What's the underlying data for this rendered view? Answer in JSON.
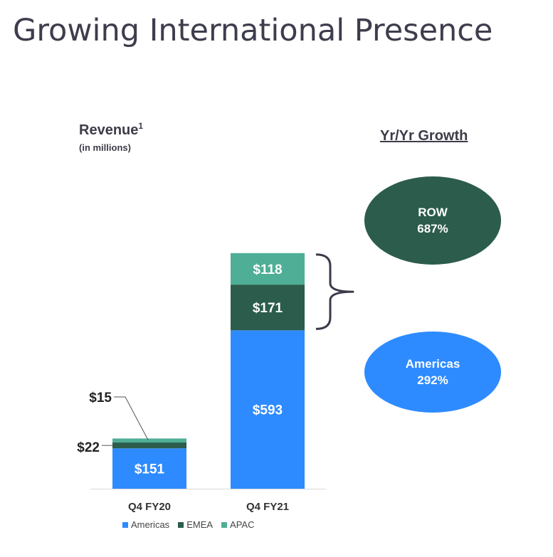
{
  "title": "Growing International Presence",
  "revenue_label": "Revenue",
  "revenue_footnote": "1",
  "revenue_sub": "(in millions)",
  "growth_heading": "Yr/Yr Growth",
  "growth": [
    {
      "label": "ROW",
      "value": "687%",
      "color": "#2b5c4c"
    },
    {
      "label": "Americas",
      "value": "292%",
      "color": "#2e8bff"
    }
  ],
  "chart_data": {
    "type": "bar",
    "stacked": true,
    "categories": [
      "Q4 FY20",
      "Q4 FY21"
    ],
    "series": [
      {
        "name": "Americas",
        "values": [
          151,
          593
        ],
        "labels": [
          "$151",
          "$593"
        ],
        "color": "#2e8bff"
      },
      {
        "name": "EMEA",
        "values": [
          22,
          171
        ],
        "labels": [
          "$22",
          "$171"
        ],
        "color": "#2b5c4c"
      },
      {
        "name": "APAC",
        "values": [
          15,
          118
        ],
        "labels": [
          "$15",
          "$118"
        ],
        "color": "#4fae96"
      }
    ],
    "legend_position": "bottom",
    "grid": false
  }
}
